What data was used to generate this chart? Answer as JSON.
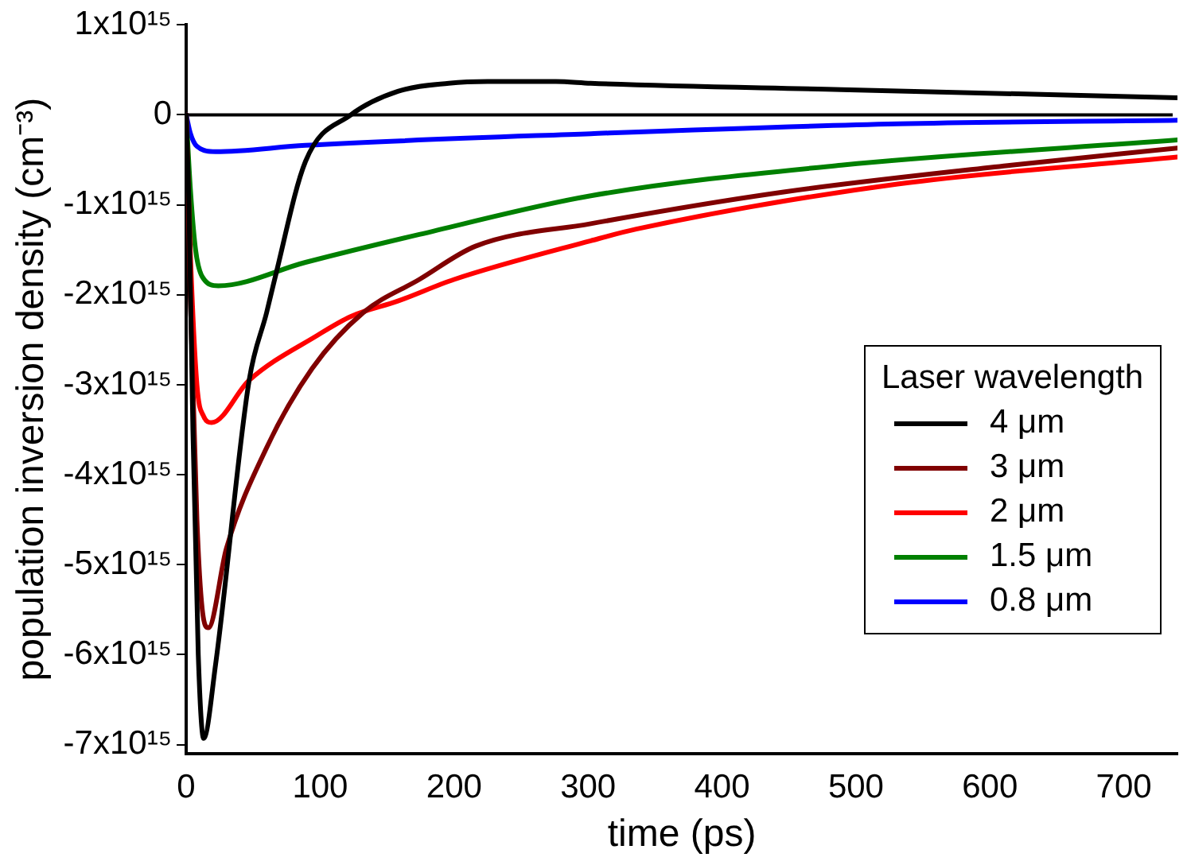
{
  "chart_data": {
    "type": "line",
    "xlabel": "time (ps)",
    "ylabel": "population inversion density (cm⁻³)",
    "legend_title": "Laser wavelength",
    "legend": "right",
    "xlim": [
      0,
      740
    ],
    "xticks": [
      0,
      100,
      200,
      300,
      400,
      500,
      600,
      700
    ],
    "ylim": [
      -7100000000000000.0,
      1000000000000000.0
    ],
    "yticks": [
      {
        "value": 1000000000000000.0,
        "label": "1x10¹⁵"
      },
      0,
      {
        "value": -1000000000000000.0,
        "label": "-1x10¹⁵"
      },
      {
        "value": -2000000000000000.0,
        "label": "-2x10¹⁵"
      },
      {
        "value": -3000000000000000.0,
        "label": "-3x10¹⁵"
      },
      {
        "value": -4000000000000000.0,
        "label": "-4x10¹⁵"
      },
      {
        "value": -5000000000000000.0,
        "label": "-5x10¹⁵"
      },
      {
        "value": -6000000000000000.0,
        "label": "-6x10¹⁵"
      },
      {
        "value": -7000000000000000.0,
        "label": "-7x10¹⁵"
      }
    ],
    "grid": false,
    "marker": "none",
    "line_style": "solid",
    "ref_lines": [
      {
        "axis": "y",
        "value": 0,
        "color": "#000000"
      }
    ],
    "series": [
      {
        "name": "4 μm",
        "color": "#000000",
        "x": [
          0,
          2,
          5,
          9,
          13,
          22,
          47,
          60,
          66,
          89,
          123,
          158,
          196,
          225,
          276,
          302,
          489,
          740
        ],
        "values": [
          0,
          -1000000000000000.0,
          -3500000000000000.0,
          -6000000000000000.0,
          -6930000000000000.0,
          -6100000000000000.0,
          -2950000000000000.0,
          -2200000000000000.0,
          -1830000000000000.0,
          -520000000000000.0,
          0,
          260000000000000.0,
          350000000000000.0,
          370000000000000.0,
          370000000000000.0,
          350000000000000.0,
          280000000000000.0,
          190000000000000.0
        ]
      },
      {
        "name": "3 μm",
        "color": "#800000",
        "x": [
          0,
          3,
          8,
          12,
          16.5,
          30,
          60,
          94,
          132,
          174,
          216,
          302,
          445,
          616,
          740
        ],
        "values": [
          0,
          -2000000000000000.0,
          -4500000000000000.0,
          -5500000000000000.0,
          -5700000000000000.0,
          -4820000000000000.0,
          -3700000000000000.0,
          -2820000000000000.0,
          -2200000000000000.0,
          -1830000000000000.0,
          -1460000000000000.0,
          -1210000000000000.0,
          -860000000000000.0,
          -560000000000000.0,
          -370000000000000.0
        ]
      },
      {
        "name": "2 μm",
        "color": "#ff0000",
        "x": [
          0,
          3,
          8,
          13,
          19,
          47,
          98,
          123,
          158,
          200,
          302,
          336,
          531,
          740
        ],
        "values": [
          0,
          -1500000000000000.0,
          -3000000000000000.0,
          -3350000000000000.0,
          -3420000000000000.0,
          -2950000000000000.0,
          -2450000000000000.0,
          -2240000000000000.0,
          -2070000000000000.0,
          -1830000000000000.0,
          -1400000000000000.0,
          -1270000000000000.0,
          -770000000000000.0,
          -470000000000000.0
        ]
      },
      {
        "name": "1.5 μm",
        "color": "#008000",
        "x": [
          0,
          3,
          7,
          12,
          24,
          89,
          174,
          302,
          489,
          740
        ],
        "values": [
          0,
          -800000000000000.0,
          -1500000000000000.0,
          -1800000000000000.0,
          -1900000000000000.0,
          -1640000000000000.0,
          -1330000000000000.0,
          -900000000000000.0,
          -560000000000000.0,
          -280000000000000.0
        ]
      },
      {
        "name": "0.8 μm",
        "color": "#0000ff",
        "x": [
          0,
          3,
          8,
          22,
          89,
          302,
          531,
          740
        ],
        "values": [
          0,
          -200000000000000.0,
          -350000000000000.0,
          -410000000000000.0,
          -340000000000000.0,
          -210000000000000.0,
          -100000000000000.0,
          -60000000000000.0
        ]
      }
    ]
  }
}
